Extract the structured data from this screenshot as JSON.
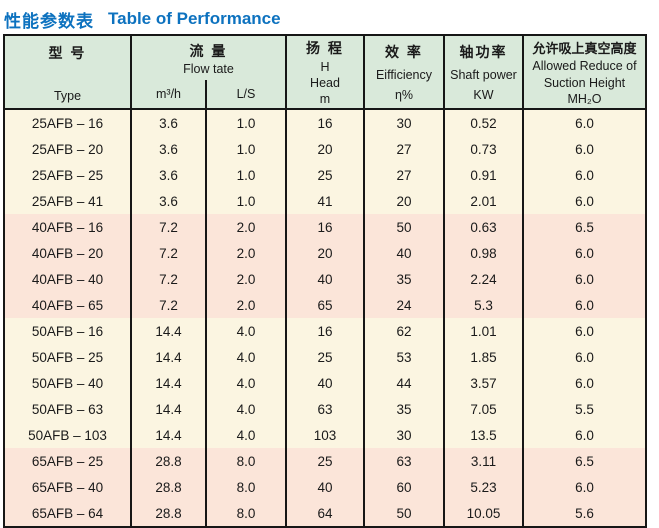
{
  "title": {
    "zh": "性能参数表",
    "en": "Table of Performance"
  },
  "colors": {
    "title_blue": "#0d72bf",
    "header_green": "#d9e9da",
    "band_cream": "#fbf5e1",
    "band_pink": "#fbe5d9",
    "border_black": "#161616"
  },
  "header": {
    "type": {
      "zh": "型  号",
      "en": "Type"
    },
    "flow": {
      "zh": "流  量",
      "en": "Flow tate",
      "sub_m3h": "m³/h",
      "sub_ls": "L/S"
    },
    "head": {
      "zh": "扬  程",
      "line2": "H",
      "line3": "Head",
      "unit": "m"
    },
    "efficiency": {
      "zh": "效  率",
      "en": "Eifficiency",
      "unit": "η%"
    },
    "shaft_power": {
      "zh": "轴功率",
      "en": "Shaft power",
      "unit": "KW"
    },
    "suction": {
      "zh": "允许吸上真空高度",
      "en_line1": "Allowed Reduce of",
      "en_line2": "Suction Height",
      "unit": "MH₂O"
    }
  },
  "rows": [
    {
      "type": "25AFB – 16",
      "m3h": "3.6",
      "ls": "1.0",
      "head": "16",
      "eff": "30",
      "kw": "0.52",
      "suction": "6.0",
      "band": "cream"
    },
    {
      "type": "25AFB – 20",
      "m3h": "3.6",
      "ls": "1.0",
      "head": "20",
      "eff": "27",
      "kw": "0.73",
      "suction": "6.0",
      "band": "cream"
    },
    {
      "type": "25AFB – 25",
      "m3h": "3.6",
      "ls": "1.0",
      "head": "25",
      "eff": "27",
      "kw": "0.91",
      "suction": "6.0",
      "band": "cream"
    },
    {
      "type": "25AFB – 41",
      "m3h": "3.6",
      "ls": "1.0",
      "head": "41",
      "eff": "20",
      "kw": "2.01",
      "suction": "6.0",
      "band": "cream"
    },
    {
      "type": "40AFB – 16",
      "m3h": "7.2",
      "ls": "2.0",
      "head": "16",
      "eff": "50",
      "kw": "0.63",
      "suction": "6.5",
      "band": "pink"
    },
    {
      "type": "40AFB – 20",
      "m3h": "7.2",
      "ls": "2.0",
      "head": "20",
      "eff": "40",
      "kw": "0.98",
      "suction": "6.0",
      "band": "pink"
    },
    {
      "type": "40AFB – 40",
      "m3h": "7.2",
      "ls": "2.0",
      "head": "40",
      "eff": "35",
      "kw": "2.24",
      "suction": "6.0",
      "band": "pink"
    },
    {
      "type": "40AFB – 65",
      "m3h": "7.2",
      "ls": "2.0",
      "head": "65",
      "eff": "24",
      "kw": "5.3",
      "suction": "6.0",
      "band": "pink"
    },
    {
      "type": "50AFB – 16",
      "m3h": "14.4",
      "ls": "4.0",
      "head": "16",
      "eff": "62",
      "kw": "1.01",
      "suction": "6.0",
      "band": "cream"
    },
    {
      "type": "50AFB – 25",
      "m3h": "14.4",
      "ls": "4.0",
      "head": "25",
      "eff": "53",
      "kw": "1.85",
      "suction": "6.0",
      "band": "cream"
    },
    {
      "type": "50AFB – 40",
      "m3h": "14.4",
      "ls": "4.0",
      "head": "40",
      "eff": "44",
      "kw": "3.57",
      "suction": "6.0",
      "band": "cream"
    },
    {
      "type": "50AFB – 63",
      "m3h": "14.4",
      "ls": "4.0",
      "head": "63",
      "eff": "35",
      "kw": "7.05",
      "suction": "5.5",
      "band": "cream"
    },
    {
      "type": "50AFB – 103",
      "m3h": "14.4",
      "ls": "4.0",
      "head": "103",
      "eff": "30",
      "kw": "13.5",
      "suction": "6.0",
      "band": "cream"
    },
    {
      "type": "65AFB – 25",
      "m3h": "28.8",
      "ls": "8.0",
      "head": "25",
      "eff": "63",
      "kw": "3.11",
      "suction": "6.5",
      "band": "pink"
    },
    {
      "type": "65AFB – 40",
      "m3h": "28.8",
      "ls": "8.0",
      "head": "40",
      "eff": "60",
      "kw": "5.23",
      "suction": "6.0",
      "band": "pink"
    },
    {
      "type": "65AFB – 64",
      "m3h": "28.8",
      "ls": "8.0",
      "head": "64",
      "eff": "50",
      "kw": "10.05",
      "suction": "5.6",
      "band": "pink"
    }
  ]
}
